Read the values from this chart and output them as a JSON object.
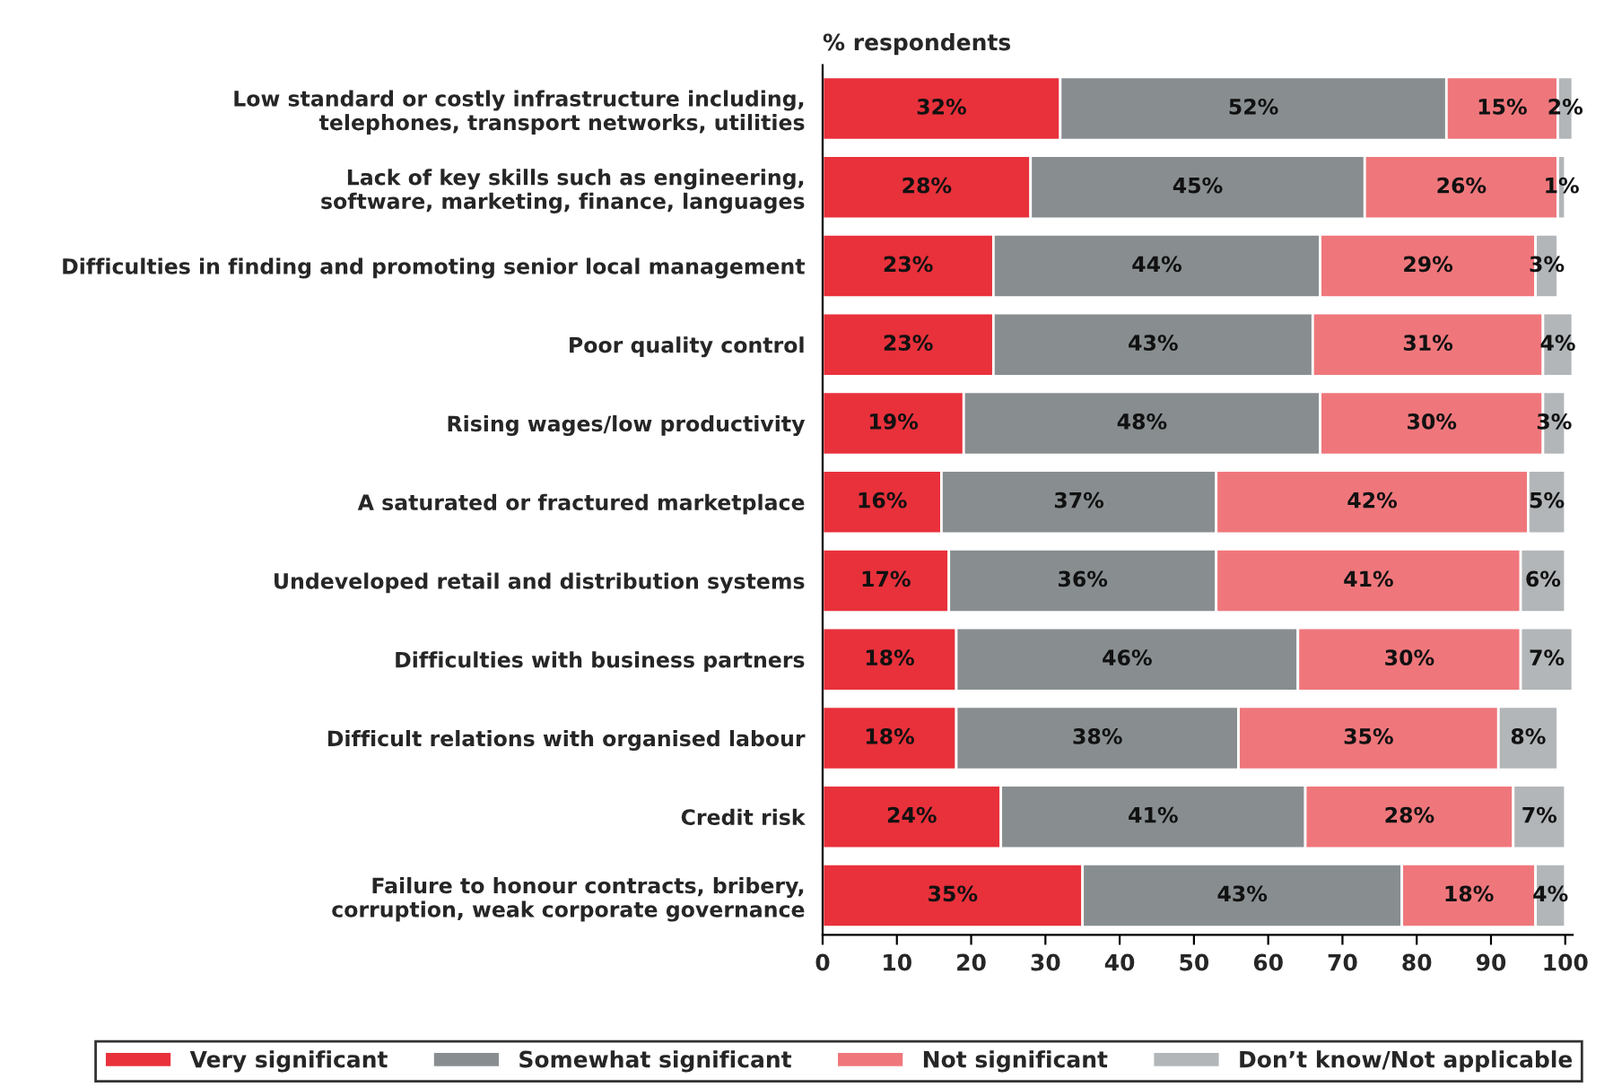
{
  "chart_data": {
    "type": "bar",
    "orientation": "horizontal",
    "stacked": true,
    "title": "% respondents",
    "categories": [
      "Low standard or costly infrastructure including,\ntelephones, transport networks, utilities",
      "Lack of key skills such as engineering,\nsoftware, marketing, finance, languages",
      "Difficulties in finding and promoting senior local management",
      "Poor quality control",
      "Rising wages/low productivity",
      "A saturated or fractured marketplace",
      "Undeveloped retail and distribution systems",
      "Difficulties with business partners",
      "Difficult relations with organised labour",
      "Credit risk",
      "Failure to honour contracts, bribery,\ncorruption, weak corporate governance"
    ],
    "series": [
      {
        "name": "Very significant",
        "color": "#e8313b",
        "values": [
          32,
          28,
          23,
          23,
          19,
          16,
          17,
          18,
          18,
          24,
          35
        ],
        "value_labels": [
          "32%",
          "28%",
          "23%",
          "23%",
          "19%",
          "16%",
          "17%",
          "18%",
          "18%",
          "24%",
          "35%"
        ]
      },
      {
        "name": "Somewhat significant",
        "color": "#888e90",
        "values": [
          52,
          45,
          44,
          43,
          48,
          37,
          36,
          46,
          38,
          41,
          43
        ],
        "value_labels": [
          "52%",
          "45%",
          "44%",
          "43%",
          "48%",
          "37%",
          "36%",
          "46%",
          "38%",
          "41%",
          "43%"
        ]
      },
      {
        "name": "Not significant",
        "color": "#ef777c",
        "values": [
          15,
          26,
          29,
          31,
          30,
          42,
          41,
          30,
          35,
          28,
          18
        ],
        "value_labels": [
          "15%",
          "26%",
          "29%",
          "31%",
          "30%",
          "42%",
          "41%",
          "30%",
          "35%",
          "28%",
          "18%"
        ]
      },
      {
        "name": "Don’t know/Not applicable",
        "color": "#b2b6b8",
        "values": [
          2,
          1,
          3,
          4,
          3,
          5,
          6,
          7,
          8,
          7,
          4
        ],
        "value_labels": [
          "2%",
          "1%",
          "3%",
          "4%",
          "3%",
          "5%",
          "6%",
          "7%",
          "8%",
          "7%",
          "4%"
        ]
      }
    ],
    "xlim": [
      0,
      101
    ],
    "xticks": [
      0,
      10,
      20,
      30,
      40,
      50,
      60,
      70,
      80,
      90,
      100
    ],
    "grid": false,
    "legend": "bottom"
  }
}
